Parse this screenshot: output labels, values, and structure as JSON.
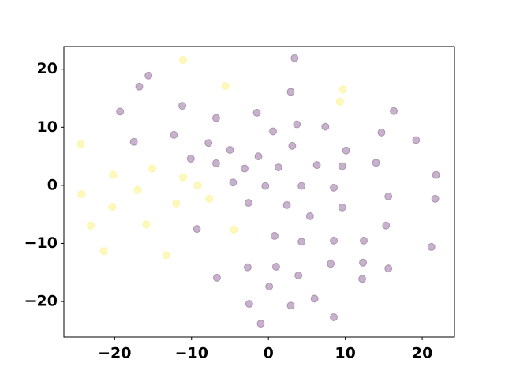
{
  "chart_data": {
    "type": "scatter",
    "xlim": [
      -26.6,
      24.2
    ],
    "ylim": [
      -26.1,
      23.9
    ],
    "xticks": [
      {
        "value": -20,
        "label": "−20"
      },
      {
        "value": -10,
        "label": "−10"
      },
      0,
      10,
      20
    ],
    "yticks": [
      {
        "value": -20,
        "label": "−20"
      },
      {
        "value": -10,
        "label": "−10"
      },
      0,
      10,
      20
    ],
    "series": [
      {
        "color": "#fde725",
        "x": [
          -24.4,
          -24.3,
          -23.1,
          -21.4,
          -20.2,
          -20.3,
          -17.0,
          -15.1,
          -15.9,
          -13.3,
          -11.1,
          -11.1,
          -12.0,
          -9.2,
          -7.7,
          -5.6,
          -4.5,
          9.7,
          9.3
        ],
        "values": [
          7.1,
          -1.5,
          -6.9,
          -11.3,
          1.8,
          -3.7,
          -0.8,
          2.9,
          -6.7,
          -12.0,
          21.6,
          1.4,
          -3.1,
          0.0,
          -2.3,
          17.1,
          -7.6,
          16.5,
          14.4
        ]
      },
      {
        "color": "#440154",
        "x": [
          -19.3,
          -16.8,
          -15.6,
          -17.5,
          -11.2,
          -12.3,
          -10.1,
          -7.8,
          -6.8,
          -6.8,
          -5.0,
          -9.3,
          -6.7,
          -4.6,
          -3.1,
          -1.5,
          -1.3,
          -2.6,
          -0.4,
          0.6,
          1.3,
          3.4,
          2.9,
          3.7,
          3.1,
          7.4,
          10.1,
          6.3,
          9.6,
          4.3,
          8.5,
          9.6,
          2.4,
          5.4,
          0.8,
          4.3,
          8.5,
          -2.7,
          1.0,
          3.9,
          0.1,
          -2.5,
          2.9,
          6.0,
          -1.0,
          8.5,
          8.1,
          12.4,
          12.3,
          12.2,
          15.6,
          15.3,
          15.6,
          14.0,
          14.7,
          16.3,
          19.2,
          21.8,
          21.7,
          21.2
        ],
        "values": [
          12.7,
          17.0,
          18.9,
          7.5,
          13.7,
          8.7,
          4.6,
          7.3,
          11.6,
          3.8,
          6.1,
          -7.5,
          -15.9,
          0.5,
          2.9,
          12.5,
          5.0,
          -3.0,
          -0.1,
          9.3,
          3.1,
          21.9,
          16.1,
          10.5,
          6.8,
          10.1,
          6.0,
          3.5,
          3.3,
          -0.1,
          -0.4,
          -3.8,
          -3.4,
          -5.3,
          -8.7,
          -9.7,
          -9.5,
          -14.1,
          -14.0,
          -15.5,
          -17.4,
          -20.4,
          -20.7,
          -19.5,
          -23.8,
          -22.7,
          -13.5,
          -9.5,
          -13.3,
          -16.1,
          -14.3,
          -6.9,
          -1.9,
          3.9,
          9.1,
          12.8,
          7.8,
          1.8,
          -2.3,
          -10.6
        ]
      }
    ]
  }
}
